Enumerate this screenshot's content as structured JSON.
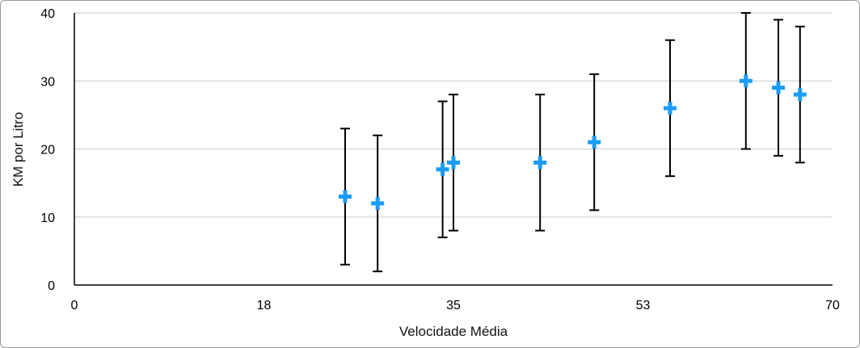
{
  "chart_data": {
    "type": "scatter",
    "title": "",
    "xlabel": "Velocidade Média",
    "ylabel": "KM por Litro",
    "xlim": [
      0,
      70
    ],
    "ylim": [
      0,
      40
    ],
    "xticks": [
      "0",
      "18",
      "35",
      "53",
      "70"
    ],
    "xtick_values": [
      0,
      17.5,
      35,
      52.5,
      70
    ],
    "yticks": [
      "0",
      "10",
      "20",
      "30",
      "40"
    ],
    "ytick_values": [
      0,
      10,
      20,
      30,
      40
    ],
    "grid": "horizontal",
    "marker": "plus",
    "marker_color": "#1a9cf5",
    "error_bar_color": "#000000",
    "points": [
      {
        "x": 25,
        "y": 13,
        "err": 10
      },
      {
        "x": 28,
        "y": 12,
        "err": 10
      },
      {
        "x": 34,
        "y": 17,
        "err": 10
      },
      {
        "x": 35,
        "y": 18,
        "err": 10
      },
      {
        "x": 43,
        "y": 18,
        "err": 10
      },
      {
        "x": 48,
        "y": 21,
        "err": 10
      },
      {
        "x": 55,
        "y": 26,
        "err": 10
      },
      {
        "x": 62,
        "y": 30,
        "err": 10
      },
      {
        "x": 65,
        "y": 29,
        "err": 10
      },
      {
        "x": 67,
        "y": 28,
        "err": 10
      }
    ]
  }
}
